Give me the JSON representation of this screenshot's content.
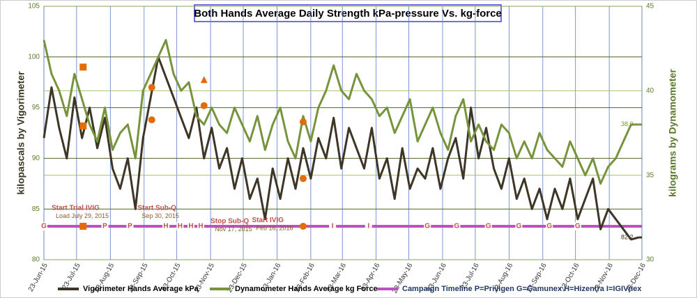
{
  "chart_data": {
    "type": "line",
    "title": "Both Hands Average Daily Strength kPa-pressure Vs. kg-force",
    "y_label": "kilopascals by Vigorimeter",
    "y2_label": "kilograms by Dynamometer",
    "ylim": [
      80,
      105
    ],
    "yticks": [
      80,
      85,
      90,
      95,
      100,
      105
    ],
    "y2lim": [
      30,
      45
    ],
    "y2ticks": [
      30,
      35,
      40,
      45
    ],
    "xlim": [
      "23-Jun-15",
      "23-Dec-16"
    ],
    "xticks": [
      "23-Jun-15",
      "23-Jul-15",
      "23-Aug-15",
      "23-Sep-15",
      "23-Oct-15",
      "23-Nov-15",
      "23-Dec-15",
      "23-Jan-16",
      "23-Feb-16",
      "23-Mar-16",
      "23-Apr-16",
      "23-May-16",
      "23-Jun-16",
      "23-Jul-16",
      "23-Aug-16",
      "23-Sep-16",
      "23-Oct-16",
      "23-Nov-16",
      "23-Dec-16"
    ],
    "grid": true,
    "x": [
      "23-Jun-15",
      "30-Jun-15",
      "7-Jul-15",
      "14-Jul-15",
      "21-Jul-15",
      "28-Jul-15",
      "4-Aug-15",
      "11-Aug-15",
      "18-Aug-15",
      "25-Aug-15",
      "1-Sep-15",
      "8-Sep-15",
      "15-Sep-15",
      "22-Sep-15",
      "29-Sep-15",
      "6-Oct-15",
      "13-Oct-15",
      "20-Oct-15",
      "27-Oct-15",
      "3-Nov-15",
      "10-Nov-15",
      "17-Nov-15",
      "24-Nov-15",
      "1-Dec-15",
      "8-Dec-15",
      "15-Dec-15",
      "22-Dec-15",
      "29-Dec-15",
      "5-Jan-16",
      "12-Jan-16",
      "19-Jan-16",
      "26-Jan-16",
      "2-Feb-16",
      "9-Feb-16",
      "16-Feb-16",
      "23-Feb-16",
      "1-Mar-16",
      "8-Mar-16",
      "15-Mar-16",
      "22-Mar-16",
      "29-Mar-16",
      "5-Apr-16",
      "12-Apr-16",
      "19-Apr-16",
      "26-Apr-16",
      "3-May-16",
      "10-May-16",
      "17-May-16",
      "24-May-16",
      "31-May-16",
      "7-Jun-16",
      "14-Jun-16",
      "21-Jun-16",
      "28-Jun-16",
      "5-Jul-16",
      "12-Jul-16",
      "19-Jul-16",
      "26-Jul-16",
      "2-Aug-16",
      "9-Aug-16",
      "16-Aug-16",
      "23-Aug-16",
      "30-Aug-16",
      "6-Sep-16",
      "13-Sep-16",
      "20-Sep-16",
      "27-Sep-16",
      "4-Oct-16",
      "11-Oct-16",
      "18-Oct-16",
      "25-Oct-16",
      "1-Nov-16",
      "8-Nov-16",
      "15-Nov-16",
      "22-Nov-16",
      "29-Nov-16",
      "6-Dec-16",
      "13-Dec-16",
      "20-Dec-16"
    ],
    "series": [
      {
        "name": "Vigorimeter Hands Average kPa",
        "color": "#3d3525",
        "values": [
          92,
          97,
          93,
          90,
          96,
          92,
          95,
          91,
          94,
          89,
          87,
          90,
          85,
          92,
          96,
          100,
          98,
          96,
          94,
          92,
          95,
          90,
          93,
          89,
          91,
          87,
          90,
          86,
          88,
          84,
          89,
          86,
          90,
          87,
          91,
          88,
          92,
          90,
          94,
          89,
          93,
          91,
          89,
          93,
          88,
          90,
          86,
          91,
          87,
          89,
          88,
          91,
          87,
          90,
          92,
          88,
          95,
          90,
          93,
          89,
          87,
          90,
          86,
          88,
          85,
          87,
          84,
          87,
          85,
          88,
          84,
          86,
          88,
          83,
          85,
          84,
          83,
          82,
          82.2
        ]
      },
      {
        "name": "Dynamometer Hands Average kg Force",
        "color": "#77933c",
        "axis": "y2",
        "last_label": "38.0",
        "values": [
          43,
          41,
          40,
          38.5,
          41,
          39.5,
          38,
          37,
          39,
          36.5,
          37.5,
          38,
          36,
          40,
          41,
          42,
          43,
          41,
          40,
          40.5,
          38.5,
          38,
          39,
          38,
          37.5,
          39,
          38,
          37,
          38.5,
          36.5,
          38,
          39,
          37,
          36,
          38.5,
          37,
          39,
          40,
          41.5,
          40,
          39.5,
          41,
          40,
          39.5,
          38.5,
          39,
          37.5,
          38.5,
          39.5,
          37,
          38,
          39,
          37.5,
          36.5,
          38.5,
          39.5,
          37,
          38,
          37,
          36.5,
          38,
          37.5,
          36,
          37,
          36,
          37.5,
          36.5,
          36,
          35.5,
          37,
          36,
          35,
          36,
          34.5,
          35.5,
          36,
          37,
          38,
          38
        ]
      }
    ],
    "timeline": {
      "name": "Campaign Timeline P=Privigen G=Gamunex H=Hizentra I=IGIVnex",
      "color": "#c050c0",
      "y": 83.3,
      "points": [
        {
          "x": "23-Jun-15",
          "label": "G"
        },
        {
          "x": "18-Aug-15",
          "label": "P"
        },
        {
          "x": "10-Sep-15",
          "label": "P"
        },
        {
          "x": "13-Oct-15",
          "label": "H"
        },
        {
          "x": "26-Oct-15",
          "label": "H"
        },
        {
          "x": "5-Nov-15",
          "label": "H"
        },
        {
          "x": "14-Nov-15",
          "label": "H"
        },
        {
          "x": "14-Mar-16",
          "label": "I"
        },
        {
          "x": "16-Apr-16",
          "label": "I"
        },
        {
          "x": "9-Jun-16",
          "label": "G"
        },
        {
          "x": "6-Jul-16",
          "label": "G"
        },
        {
          "x": "4-Aug-16",
          "label": "G"
        },
        {
          "x": "1-Sep-16",
          "label": "G"
        },
        {
          "x": "29-Sep-16",
          "label": "G"
        },
        {
          "x": "25-Oct-16",
          "label": "G"
        }
      ]
    },
    "events": {
      "color": "#e36c09",
      "points": [
        {
          "x": "29-Jul-15",
          "y": 99,
          "shape": "square"
        },
        {
          "x": "29-Jul-15",
          "y": 93.2,
          "shape": "square"
        },
        {
          "x": "29-Jul-15",
          "y": 83.3,
          "shape": "square"
        },
        {
          "x": "30-Sep-15",
          "y": 97,
          "shape": "circle"
        },
        {
          "x": "30-Sep-15",
          "y": 93.8,
          "shape": "circle"
        },
        {
          "x": "17-Nov-15",
          "y": 97.7,
          "shape": "triangle"
        },
        {
          "x": "17-Nov-15",
          "y": 95.2,
          "shape": "circle"
        },
        {
          "x": "16-Feb-16",
          "y": 93.6,
          "shape": "circle"
        },
        {
          "x": "16-Feb-16",
          "y": 88,
          "shape": "circle"
        },
        {
          "x": "16-Feb-16",
          "y": 83.3,
          "shape": "circle"
        }
      ]
    },
    "annotations": [
      {
        "text": "Start Trial IVIG",
        "note": "Load July 29, 2015",
        "x": "30-Jun-15",
        "y": 85.1
      },
      {
        "text": "Start Sub-Q",
        "note": "Sep 30, 2015",
        "x": "17-Sep-15",
        "y": 85.1
      },
      {
        "text": "Stop Sub-Q",
        "note": "Nov 17, 2015",
        "x": "23-Nov-15",
        "y": 83.8
      },
      {
        "text": "Start IVIG",
        "note": "Feb 16, 2016",
        "x": "31-Dec-15",
        "y": 83.9
      }
    ]
  }
}
